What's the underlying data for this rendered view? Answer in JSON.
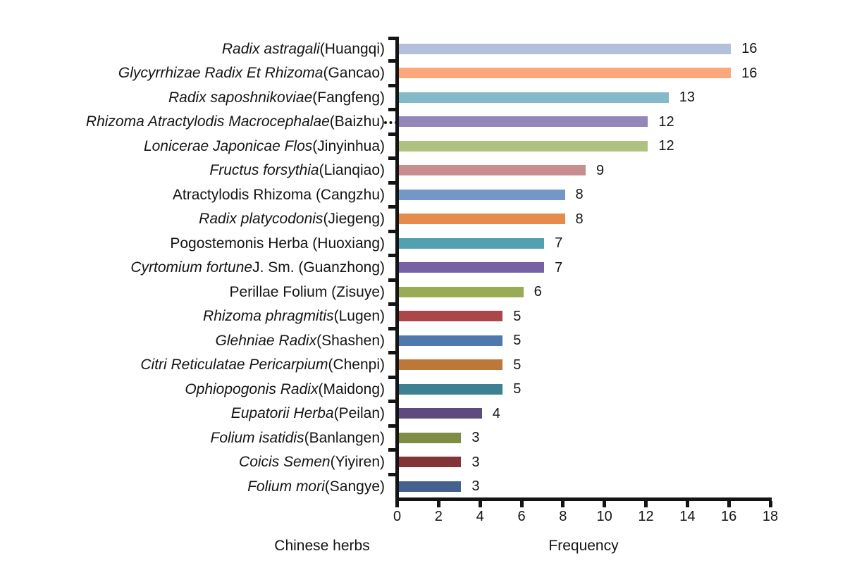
{
  "chart_data": {
    "type": "bar",
    "orientation": "horizontal",
    "title": "",
    "xlabel": "Frequency",
    "ylabel": "Chinese herbs",
    "xlim": [
      0,
      18
    ],
    "x_ticks": [
      0,
      2,
      4,
      6,
      8,
      10,
      12,
      14,
      16,
      18
    ],
    "grid": false,
    "legend": false,
    "axis_color": "#141414",
    "bars": [
      {
        "italic": "Radix astragali",
        "regular": " (Huangqi)",
        "value": 16,
        "color": "#B2C0DB",
        "dots": false
      },
      {
        "italic": "Glycyrrhizae Radix Et Rhizoma",
        "regular": " (Gancao)",
        "value": 16,
        "color": "#FCA77B",
        "dots": false
      },
      {
        "italic": "Radix saposhnikoviae",
        "regular": " (Fangfeng)",
        "value": 13,
        "color": "#84BAC8",
        "dots": false
      },
      {
        "italic": "Rhizoma Atractylodis Macrocephalae",
        "regular": " (Baizhu)",
        "value": 12,
        "color": "#9287B8",
        "dots": true
      },
      {
        "italic": "Lonicerae Japonicae Flos",
        "regular": " (Jinyinhua)",
        "value": 12,
        "color": "#AFC180",
        "dots": false
      },
      {
        "italic": "Fructus forsythia",
        "regular": " (Lianqiao)",
        "value": 9,
        "color": "#C88E8F",
        "dots": false
      },
      {
        "italic": "",
        "regular": "Atractylodis Rhizoma (Cangzhu)",
        "value": 8,
        "color": "#7398C6",
        "dots": false
      },
      {
        "italic": "Radix platycodonis",
        "regular": " (Jiegeng)",
        "value": 8,
        "color": "#E68B49",
        "dots": false
      },
      {
        "italic": "",
        "regular": "Pogostemonis Herba (Huoxiang)",
        "value": 7,
        "color": "#52A0B0",
        "dots": false
      },
      {
        "italic": "Cyrtomium fortune",
        "regular": " J. Sm. (Guanzhong)",
        "value": 7,
        "color": "#7661A4",
        "dots": false
      },
      {
        "italic": "",
        "regular": "Perillae Folium (Zisuye)",
        "value": 6,
        "color": "#98AC56",
        "dots": false
      },
      {
        "italic": "Rhizoma phragmitis",
        "regular": " (Lugen)",
        "value": 5,
        "color": "#AC4749",
        "dots": false
      },
      {
        "italic": "Glehniae Radix",
        "regular": " (Shashen)",
        "value": 5,
        "color": "#4E78AE",
        "dots": false
      },
      {
        "italic": "Citri Reticulatae Pericarpium",
        "regular": " (Chenpi)",
        "value": 5,
        "color": "#BD7738",
        "dots": false
      },
      {
        "italic": "Ophiopogonis Radix",
        "regular": " (Maidong)",
        "value": 5,
        "color": "#3C8092",
        "dots": false
      },
      {
        "italic": "Eupatorii Herba",
        "regular": " (Peilan)",
        "value": 4,
        "color": "#5D4A7F",
        "dots": false
      },
      {
        "italic": "Folium isatidis",
        "regular": " (Banlangen)",
        "value": 3,
        "color": "#7E8D43",
        "dots": false
      },
      {
        "italic": "Coicis Semen",
        "regular": " (Yiyiren)",
        "value": 3,
        "color": "#843439",
        "dots": false
      },
      {
        "italic": "Folium mori",
        "regular": " (Sangye)",
        "value": 3,
        "color": "#45618D",
        "dots": false
      }
    ]
  }
}
